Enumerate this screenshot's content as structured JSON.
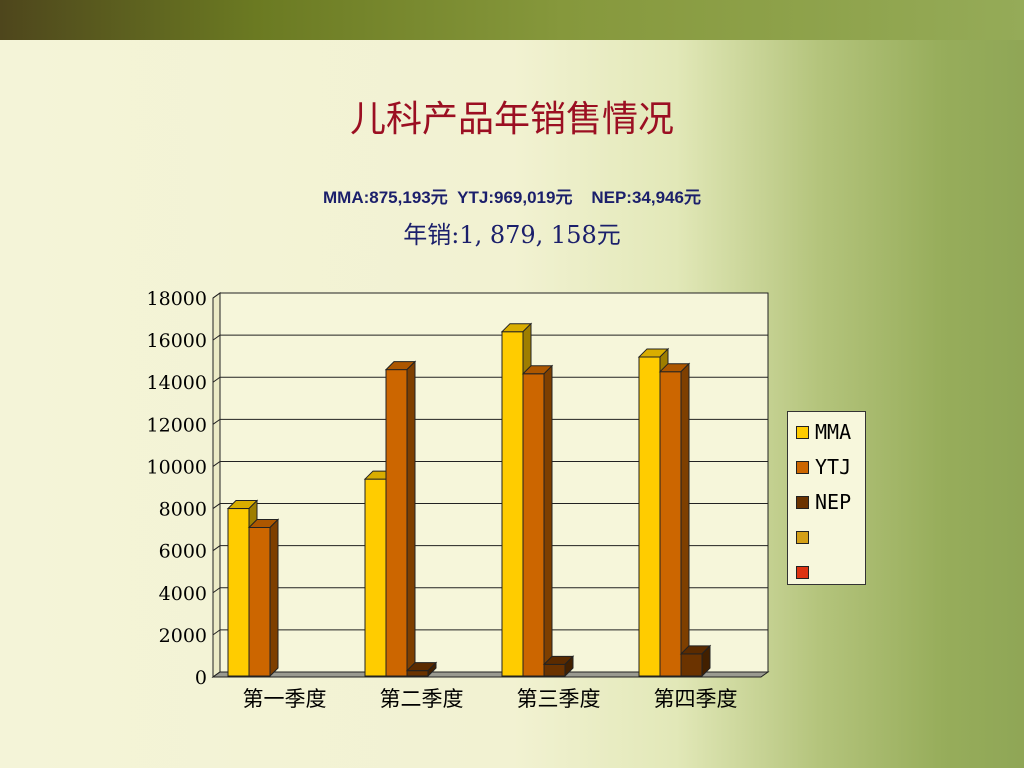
{
  "slide": {
    "title": "儿科产品年销售情况",
    "subtitle": "MMA:875,193元  YTJ:969,019元    NEP:34,946元",
    "annual": "年销:1, 879, 158元"
  },
  "chart_data": {
    "type": "bar",
    "style": "3d-clustered",
    "categories": [
      "第一季度",
      "第二季度",
      "第三季度",
      "第四季度"
    ],
    "series": [
      {
        "name": "MMA",
        "color": "#ffcc00",
        "values": [
          8000,
          9400,
          16400,
          15200
        ]
      },
      {
        "name": "YTJ",
        "color": "#cc6600",
        "values": [
          7100,
          14600,
          14400,
          14500
        ]
      },
      {
        "name": "NEP",
        "color": "#6b3300",
        "values": [
          0,
          300,
          600,
          1100
        ]
      },
      {
        "name": "",
        "color": "#d4a017",
        "values": [
          0,
          0,
          0,
          0
        ]
      },
      {
        "name": "",
        "color": "#dd3311",
        "values": [
          0,
          0,
          0,
          0
        ]
      }
    ],
    "yticks": [
      "0",
      "2000",
      "4000",
      "6000",
      "8000",
      "10000",
      "12000",
      "14000",
      "16000",
      "18000"
    ],
    "ylim": [
      0,
      18000
    ],
    "grid": true,
    "legend_position": "right"
  }
}
